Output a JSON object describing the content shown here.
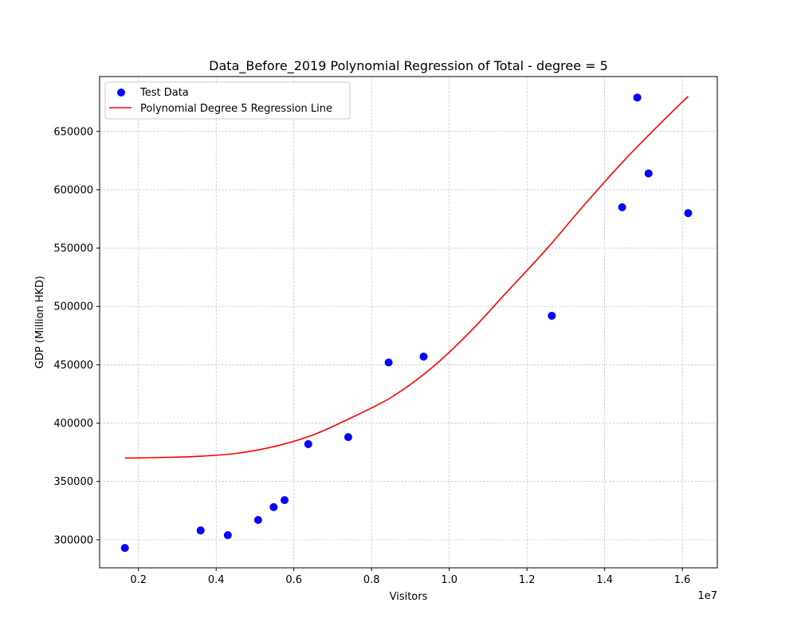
{
  "chart_data": {
    "type": "scatter",
    "title": "Data_Before_2019 Polynomial Regression of Total - degree = 5",
    "xlabel": "Visitors",
    "ylabel": "GDP (Million HKD)",
    "x_offset_label": "1e7",
    "xlim": [
      1000000,
      16900000
    ],
    "ylim": [
      276000,
      697000
    ],
    "x_ticks": [
      2000000,
      4000000,
      6000000,
      8000000,
      10000000,
      12000000,
      14000000,
      16000000
    ],
    "x_tick_labels": [
      "0.2",
      "0.4",
      "0.6",
      "0.8",
      "1.0",
      "1.2",
      "1.4",
      "1.6"
    ],
    "y_ticks": [
      300000,
      350000,
      400000,
      450000,
      500000,
      550000,
      600000,
      650000
    ],
    "y_tick_labels": [
      "300000",
      "350000",
      "400000",
      "450000",
      "500000",
      "550000",
      "600000",
      "650000"
    ],
    "grid": true,
    "legend_position": "upper-left",
    "series": [
      {
        "name": "Test Data",
        "kind": "scatter",
        "color": "#0000ff",
        "points": [
          [
            1650000,
            293000
          ],
          [
            3600000,
            308000
          ],
          [
            4300000,
            304000
          ],
          [
            5080000,
            317000
          ],
          [
            5480000,
            328000
          ],
          [
            5760000,
            334000
          ],
          [
            6370000,
            382000
          ],
          [
            7400000,
            388000
          ],
          [
            8440000,
            452000
          ],
          [
            9340000,
            457000
          ],
          [
            12640000,
            492000
          ],
          [
            14450000,
            585000
          ],
          [
            14840000,
            679000
          ],
          [
            15130000,
            614000
          ],
          [
            16150000,
            580000
          ]
        ]
      },
      {
        "name": "Polynomial Degree 5 Regression Line",
        "kind": "line",
        "color": "#ff0000",
        "points": [
          [
            1650000,
            370000
          ],
          [
            2500000,
            370500
          ],
          [
            3500000,
            371500
          ],
          [
            4500000,
            374000
          ],
          [
            5500000,
            380000
          ],
          [
            6500000,
            390000
          ],
          [
            7500000,
            405000
          ],
          [
            8500000,
            422000
          ],
          [
            9500000,
            446000
          ],
          [
            10500000,
            477000
          ],
          [
            11500000,
            513000
          ],
          [
            12500000,
            549000
          ],
          [
            13500000,
            588000
          ],
          [
            14500000,
            625000
          ],
          [
            15500000,
            659000
          ],
          [
            16150000,
            680000
          ]
        ]
      }
    ]
  }
}
